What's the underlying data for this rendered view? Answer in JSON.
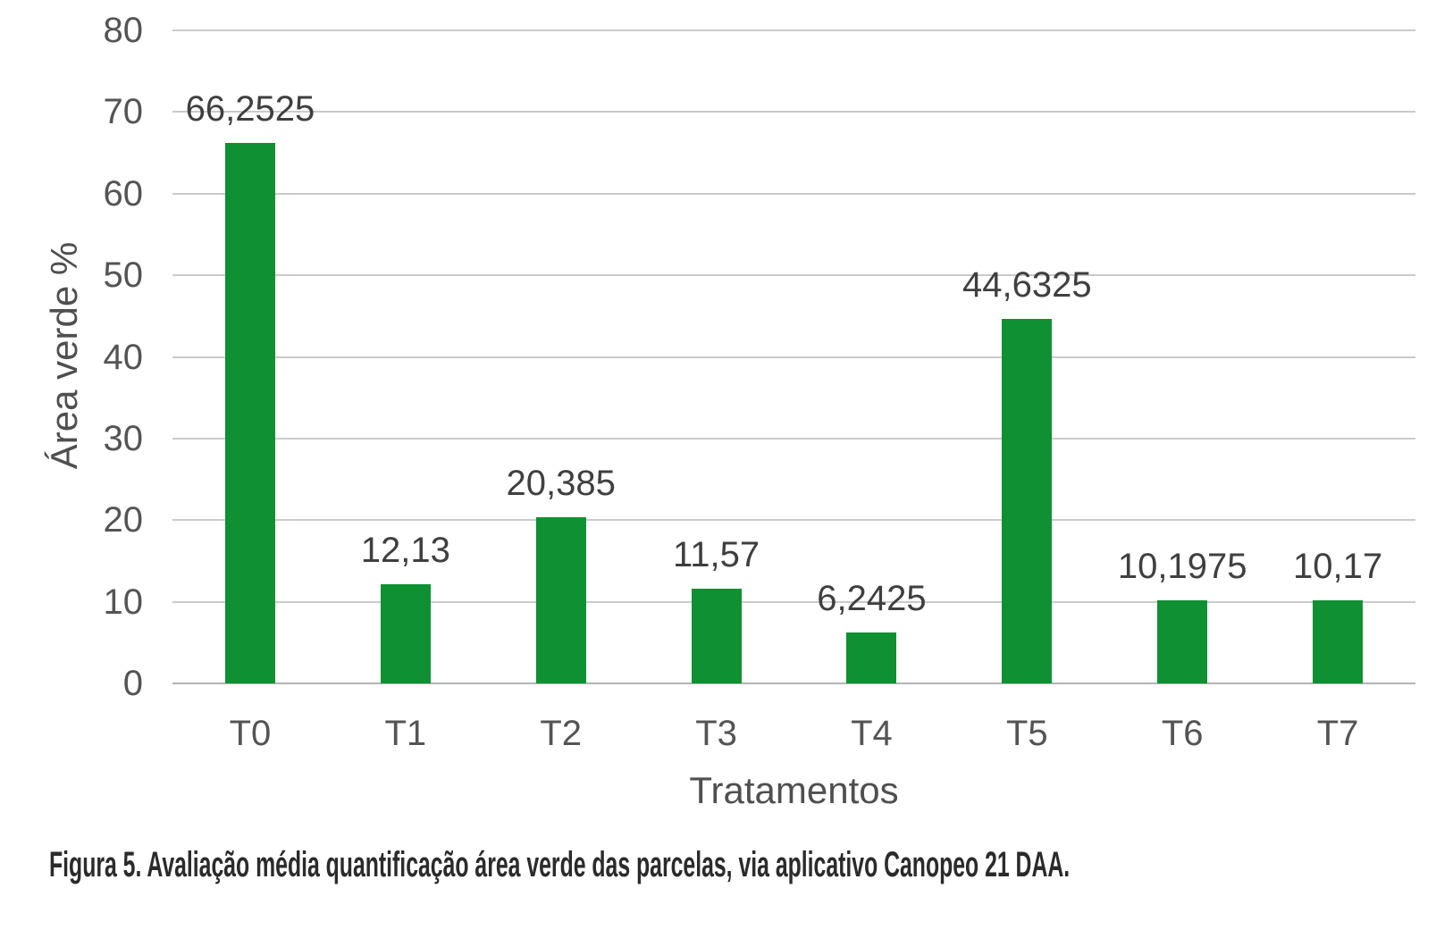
{
  "chart_data": {
    "type": "bar",
    "categories": [
      "T0",
      "T1",
      "T2",
      "T3",
      "T4",
      "T5",
      "T6",
      "T7"
    ],
    "values": [
      66.2525,
      12.13,
      20.385,
      11.57,
      6.2425,
      44.6325,
      10.1975,
      10.17
    ],
    "value_labels": [
      "66,2525",
      "12,13",
      "20,385",
      "11,57",
      "6,2425",
      "44,6325",
      "10,1975",
      "10,17"
    ],
    "title": "",
    "xlabel": "Tratamentos",
    "ylabel": "Área verde %",
    "ylim": [
      0,
      80
    ],
    "yticks": [
      0,
      10,
      20,
      30,
      40,
      50,
      60,
      70,
      80
    ],
    "grid": true,
    "legend": "none",
    "bar_color": "#0f9032"
  },
  "caption": "Figura 5. Avaliação média quantificação área verde das parcelas, via aplicativo Canopeo 21 DAA.",
  "colors": {
    "bar": "#0f9032",
    "gridline": "#cacaca",
    "axis_line": "#b3b3b3",
    "tick_text": "#545454",
    "value_label_text": "#3f3f3f",
    "axis_title_text": "#4f4f4f",
    "caption_text": "#2b2b2b",
    "background": "#ffffff"
  }
}
